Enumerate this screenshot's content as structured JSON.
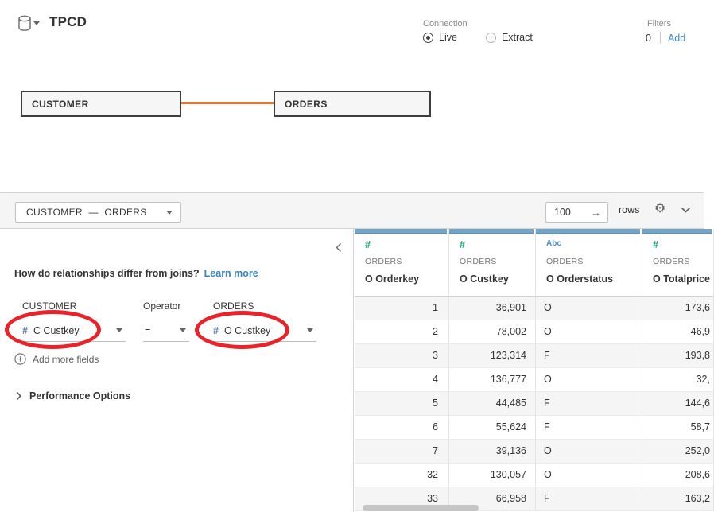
{
  "app": {
    "title": "TPCD"
  },
  "connection": {
    "label": "Connection",
    "options": [
      {
        "label": "Live",
        "selected": true
      },
      {
        "label": "Extract",
        "selected": false
      }
    ]
  },
  "filters": {
    "label": "Filters",
    "count": "0",
    "add_label": "Add"
  },
  "canvas": {
    "tables": [
      {
        "name": "CUSTOMER"
      },
      {
        "name": "ORDERS"
      }
    ]
  },
  "toolbar": {
    "relationship_label": "CUSTOMER — ORDERS",
    "rows_value": "100",
    "rows_unit_label": "rows",
    "go_arrow": "→",
    "gear_icon": "⚙"
  },
  "relationship_panel": {
    "question": "How do relationships differ from joins?",
    "learn_more_label": "Learn more",
    "left_table_label": "CUSTOMER",
    "operator_label": "Operator",
    "right_table_label": "ORDERS",
    "left_field": {
      "icon": "#",
      "value": "C Custkey"
    },
    "operator": {
      "value": "="
    },
    "right_field": {
      "icon": "#",
      "value": "O Custkey"
    },
    "add_more_fields_label": "Add more fields",
    "performance_options_label": "Performance Options"
  },
  "grid": {
    "columns": [
      {
        "icon": "#",
        "type": "number",
        "table": "ORDERS",
        "field": "O Orderkey"
      },
      {
        "icon": "#",
        "type": "number",
        "table": "ORDERS",
        "field": "O Custkey"
      },
      {
        "icon": "Abc",
        "type": "string",
        "table": "ORDERS",
        "field": "O Orderstatus"
      },
      {
        "icon": "#",
        "type": "number",
        "table": "ORDERS",
        "field": "O Totalprice"
      }
    ],
    "rows": [
      [
        "1",
        "36,901",
        "O",
        "173,6"
      ],
      [
        "2",
        "78,002",
        "O",
        "46,9"
      ],
      [
        "3",
        "123,314",
        "F",
        "193,8"
      ],
      [
        "4",
        "136,777",
        "O",
        "32,"
      ],
      [
        "5",
        "44,485",
        "F",
        "144,6"
      ],
      [
        "6",
        "55,624",
        "F",
        "58,7"
      ],
      [
        "7",
        "39,136",
        "O",
        "252,0"
      ],
      [
        "32",
        "130,057",
        "O",
        "208,6"
      ],
      [
        "33",
        "66,958",
        "F",
        "163,2"
      ]
    ]
  },
  "colors": {
    "accent_orange": "#e8762d",
    "link_blue": "#3a84c0",
    "header_strip_blue": "#74a5c7",
    "numeric_icon_green": "#0d9e76",
    "string_icon_blue": "#4a90c4",
    "field_icon_blue": "#4e79a7",
    "annotation_red": "#e82329"
  }
}
